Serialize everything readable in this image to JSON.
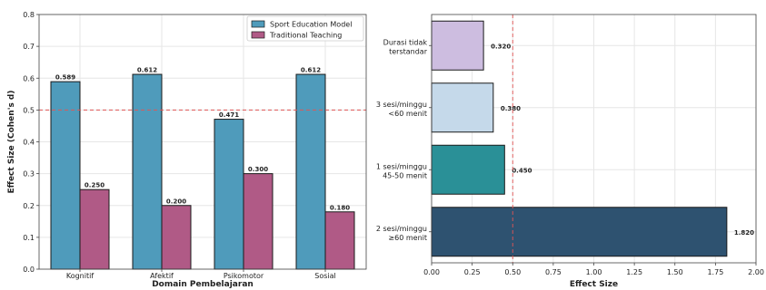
{
  "chart_data": [
    {
      "type": "bar",
      "title": "",
      "xlabel": "Domain Pembelajaran",
      "ylabel": "Effect Size (Cohen's d)",
      "ylim": [
        0,
        0.8
      ],
      "yticks": [
        "0.0",
        "0.1",
        "0.2",
        "0.3",
        "0.4",
        "0.5",
        "0.6",
        "0.7",
        "0.8"
      ],
      "categories": [
        "Kognitif",
        "Afektif",
        "Psikomotor",
        "Sosial"
      ],
      "series": [
        {
          "name": "Sport Education Model",
          "color": "#4f9bbb",
          "values": [
            0.589,
            0.612,
            0.471,
            0.612
          ],
          "labels": [
            "0.589",
            "0.612",
            "0.471",
            "0.612"
          ]
        },
        {
          "name": "Traditional Teaching",
          "color": "#b05a86",
          "values": [
            0.25,
            0.2,
            0.3,
            0.18
          ],
          "labels": [
            "0.250",
            "0.200",
            "0.300",
            "0.180"
          ]
        }
      ],
      "reference_line": {
        "value": 0.5,
        "color": "#e05555",
        "style": "dashed"
      },
      "grid": true,
      "legend_position": "top-right"
    },
    {
      "type": "bar",
      "orientation": "horizontal",
      "title": "",
      "xlabel": "Effect Size",
      "ylabel": "",
      "xlim": [
        0,
        2.0
      ],
      "xticks": [
        "0.00",
        "0.25",
        "0.50",
        "0.75",
        "1.00",
        "1.25",
        "1.50",
        "1.75",
        "2.00"
      ],
      "categories": [
        [
          "Durasi tidak",
          "terstandar"
        ],
        [
          "3 sesi/minggu",
          "<60 menit"
        ],
        [
          "1 sesi/minggu",
          "45-50 menit"
        ],
        [
          "2 sesi/minggu",
          "≥60 menit"
        ]
      ],
      "values": [
        0.32,
        0.38,
        0.45,
        1.82
      ],
      "labels": [
        "0.320",
        "0.380",
        "0.450",
        "1.820"
      ],
      "colors": [
        "#cdbde0",
        "#c5d9ea",
        "#2a9097",
        "#2e5270"
      ],
      "reference_line": {
        "value": 0.5,
        "color": "#e05555",
        "style": "dashed"
      },
      "grid": true
    }
  ]
}
